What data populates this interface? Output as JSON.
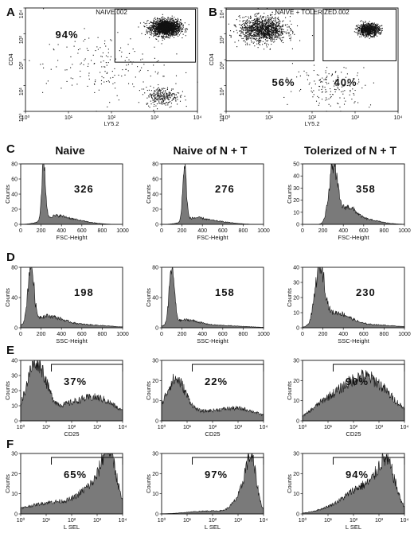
{
  "panel_letters": [
    "A",
    "B",
    "C",
    "D",
    "E",
    "F"
  ],
  "column_titles": [
    "Naive",
    "Naive of N + T",
    "Tolerized of N + T"
  ],
  "chart_data": [
    {
      "id": "A",
      "type": "scatter",
      "title": "NAIVE.002",
      "xlabel": "LY5.2",
      "ylabel": "CD4",
      "xscale": "log",
      "yscale": "log",
      "xlim": [
        1,
        10000
      ],
      "ylim": [
        1,
        10000
      ],
      "xticks": [
        "10⁰",
        "10¹",
        "10²",
        "10³",
        "10⁴"
      ],
      "yticks": [
        "10⁰",
        "10¹",
        "10²",
        "10³",
        "10⁴"
      ],
      "gates": [
        {
          "label": "94%",
          "x_range": [
            120,
            9000
          ],
          "y_range": [
            80,
            9000
          ]
        }
      ],
      "populations": [
        {
          "name": "CD4+ LY5.2+",
          "center": [
            1800,
            1800
          ],
          "spread": 2.2,
          "share": 0.8
        },
        {
          "name": "CD4- LY5.2+",
          "center": [
            1500,
            4
          ],
          "spread": 2.5,
          "share": 0.12
        },
        {
          "name": "scattered",
          "center": [
            60,
            60
          ],
          "spread": 25,
          "share": 0.08
        }
      ]
    },
    {
      "id": "B",
      "type": "scatter",
      "title": "NAIVE + TOLERIZED.002",
      "xlabel": "LY5.2",
      "ylabel": "CD4",
      "xscale": "log",
      "yscale": "log",
      "xlim": [
        1,
        10000
      ],
      "ylim": [
        1,
        10000
      ],
      "xticks": [
        "10⁰",
        "10¹",
        "10²",
        "10³",
        "10⁴"
      ],
      "yticks": [
        "10⁰",
        "10¹",
        "10²",
        "10³",
        "10⁴"
      ],
      "gates": [
        {
          "label": "56%",
          "x_range": [
            1,
            110
          ],
          "y_range": [
            90,
            9000
          ]
        },
        {
          "label": "40%",
          "x_range": [
            180,
            9000
          ],
          "y_range": [
            90,
            9000
          ]
        }
      ],
      "populations": [
        {
          "name": "LY5.2- CD4+",
          "center": [
            7,
            1500
          ],
          "spread": 3.5,
          "share": 0.55
        },
        {
          "name": "LY5.2+ CD4+",
          "center": [
            2000,
            1500
          ],
          "spread": 1.8,
          "share": 0.38
        },
        {
          "name": "scattered",
          "center": [
            300,
            10
          ],
          "spread": 8,
          "share": 0.07
        }
      ]
    },
    {
      "id": "C-naive",
      "type": "area",
      "xlabel": "FSC-Height",
      "ylabel": "Counts",
      "xscale": "linear",
      "xlim": [
        0,
        1000
      ],
      "ylim": [
        0,
        80
      ],
      "yticks": [
        0,
        20,
        40,
        60,
        80
      ],
      "xticks": [
        0,
        200,
        400,
        600,
        800,
        1000
      ],
      "statistic": "326",
      "peaks": [
        {
          "center": 225,
          "width": 18,
          "height": 78
        },
        {
          "center": 330,
          "width": 110,
          "height": 9
        },
        {
          "center": 520,
          "width": 150,
          "height": 5
        }
      ]
    },
    {
      "id": "C-naive-of-nt",
      "type": "area",
      "xlabel": "FSC-Height",
      "ylabel": "Counts",
      "xscale": "linear",
      "xlim": [
        0,
        1000
      ],
      "ylim": [
        0,
        80
      ],
      "yticks": [
        0,
        20,
        40,
        60,
        80
      ],
      "xticks": [
        0,
        200,
        400,
        600,
        800,
        1000
      ],
      "statistic": "276",
      "peaks": [
        {
          "center": 225,
          "width": 18,
          "height": 72
        },
        {
          "center": 320,
          "width": 100,
          "height": 7
        },
        {
          "center": 520,
          "width": 150,
          "height": 4
        }
      ]
    },
    {
      "id": "C-tolerized-of-nt",
      "type": "area",
      "xlabel": "FSC-Height",
      "ylabel": "Counts",
      "xscale": "linear",
      "xlim": [
        0,
        1000
      ],
      "ylim": [
        0,
        50
      ],
      "yticks": [
        0,
        10,
        20,
        30,
        40,
        50
      ],
      "xticks": [
        0,
        200,
        400,
        600,
        800,
        1000
      ],
      "statistic": "358",
      "peaks": [
        {
          "center": 300,
          "width": 40,
          "height": 48
        },
        {
          "center": 440,
          "width": 80,
          "height": 12
        },
        {
          "center": 600,
          "width": 150,
          "height": 4
        }
      ]
    },
    {
      "id": "D-naive",
      "type": "area",
      "xlabel": "SSC-Height",
      "ylabel": "Counts",
      "xscale": "linear",
      "xlim": [
        0,
        1000
      ],
      "ylim": [
        0,
        80
      ],
      "yticks": [
        0,
        40,
        80
      ],
      "xticks": [
        0,
        200,
        400,
        600,
        800,
        1000
      ],
      "statistic": "198",
      "peaks": [
        {
          "center": 100,
          "width": 28,
          "height": 78
        },
        {
          "center": 250,
          "width": 150,
          "height": 14
        },
        {
          "center": 600,
          "width": 250,
          "height": 4
        }
      ]
    },
    {
      "id": "D-naive-of-nt",
      "type": "area",
      "xlabel": "SSC-Height",
      "ylabel": "Counts",
      "xscale": "linear",
      "xlim": [
        0,
        1000
      ],
      "ylim": [
        0,
        80
      ],
      "yticks": [
        0,
        40,
        80
      ],
      "xticks": [
        0,
        200,
        400,
        600,
        800,
        1000
      ],
      "statistic": "158",
      "peaks": [
        {
          "center": 100,
          "width": 25,
          "height": 75
        },
        {
          "center": 230,
          "width": 130,
          "height": 9
        },
        {
          "center": 550,
          "width": 250,
          "height": 3
        }
      ]
    },
    {
      "id": "D-tolerized-of-nt",
      "type": "area",
      "xlabel": "SSC-Height",
      "ylabel": "Counts",
      "xscale": "linear",
      "xlim": [
        0,
        1000
      ],
      "ylim": [
        0,
        40
      ],
      "yticks": [
        0,
        10,
        20,
        30,
        40
      ],
      "xticks": [
        0,
        200,
        400,
        600,
        800,
        1000
      ],
      "statistic": "230",
      "peaks": [
        {
          "center": 170,
          "width": 45,
          "height": 38
        },
        {
          "center": 330,
          "width": 130,
          "height": 9
        },
        {
          "center": 650,
          "width": 250,
          "height": 2
        }
      ]
    },
    {
      "id": "E-naive",
      "type": "area",
      "xlabel": "CD25",
      "ylabel": "Counts",
      "xscale": "log",
      "xlim": [
        1,
        10000
      ],
      "ylim": [
        0,
        40
      ],
      "yticks": [
        0,
        10,
        20,
        30,
        40
      ],
      "xticks": [
        "10⁰",
        "10¹",
        "10²",
        "10³",
        "10⁴"
      ],
      "statistic": "37%",
      "gate_start": 16,
      "peaks": [
        {
          "center": 4,
          "width": 0.38,
          "height": 38
        },
        {
          "center": 900,
          "width": 0.8,
          "height": 15
        },
        {
          "center": 40,
          "width": 0.6,
          "height": 6
        }
      ]
    },
    {
      "id": "E-naive-of-nt",
      "type": "area",
      "xlabel": "CD25",
      "ylabel": "Counts",
      "xscale": "log",
      "xlim": [
        1,
        10000
      ],
      "ylim": [
        0,
        30
      ],
      "yticks": [
        0,
        10,
        20,
        30
      ],
      "xticks": [
        "10⁰",
        "10¹",
        "10²",
        "10³",
        "10⁴"
      ],
      "statistic": "22%",
      "gate_start": 16,
      "peaks": [
        {
          "center": 3.5,
          "width": 0.4,
          "height": 20
        },
        {
          "center": 1000,
          "width": 0.8,
          "height": 6
        },
        {
          "center": 40,
          "width": 0.6,
          "height": 3
        }
      ]
    },
    {
      "id": "E-tolerized-of-nt",
      "type": "area",
      "xlabel": "CD25",
      "ylabel": "Counts",
      "xscale": "log",
      "xlim": [
        1,
        10000
      ],
      "ylim": [
        0,
        30
      ],
      "yticks": [
        0,
        10,
        20,
        30
      ],
      "xticks": [
        "10⁰",
        "10¹",
        "10²",
        "10³",
        "10⁴"
      ],
      "statistic": "90%",
      "gate_start": 16,
      "peaks": [
        {
          "center": 250,
          "width": 1.0,
          "height": 22
        },
        {
          "center": 6,
          "width": 0.5,
          "height": 4
        }
      ]
    },
    {
      "id": "F-naive",
      "type": "area",
      "xlabel": "L SEL",
      "ylabel": "Counts",
      "xscale": "log",
      "xlim": [
        1,
        10000
      ],
      "ylim": [
        0,
        30
      ],
      "yticks": [
        0,
        10,
        20,
        30
      ],
      "xticks": [
        "10⁰",
        "10¹",
        "10²",
        "10³",
        "10⁴"
      ],
      "statistic": "65%",
      "gate_start": 16,
      "peaks": [
        {
          "center": 3000,
          "width": 0.28,
          "height": 26
        },
        {
          "center": 800,
          "width": 0.5,
          "height": 11
        },
        {
          "center": 30,
          "width": 1.2,
          "height": 6
        }
      ]
    },
    {
      "id": "F-naive-of-nt",
      "type": "area",
      "xlabel": "L SEL",
      "ylabel": "Counts",
      "xscale": "log",
      "xlim": [
        1,
        10000
      ],
      "ylim": [
        0,
        30
      ],
      "yticks": [
        0,
        10,
        20,
        30
      ],
      "xticks": [
        "10⁰",
        "10¹",
        "10²",
        "10³",
        "10⁴"
      ],
      "statistic": "97%",
      "gate_start": 16,
      "peaks": [
        {
          "center": 3200,
          "width": 0.22,
          "height": 26
        },
        {
          "center": 1200,
          "width": 0.3,
          "height": 7
        },
        {
          "center": 80,
          "width": 0.8,
          "height": 1.5
        }
      ]
    },
    {
      "id": "F-tolerized-of-nt",
      "type": "area",
      "xlabel": "L SEL",
      "ylabel": "Counts",
      "xscale": "log",
      "xlim": [
        1,
        10000
      ],
      "ylim": [
        0,
        30
      ],
      "yticks": [
        0,
        10,
        20,
        30
      ],
      "xticks": [
        "10⁰",
        "10¹",
        "10²",
        "10³",
        "10⁴"
      ],
      "statistic": "94%",
      "gate_start": 16,
      "peaks": [
        {
          "center": 2000,
          "width": 0.35,
          "height": 22
        },
        {
          "center": 300,
          "width": 0.6,
          "height": 12
        },
        {
          "center": 30,
          "width": 0.7,
          "height": 4
        }
      ]
    }
  ]
}
